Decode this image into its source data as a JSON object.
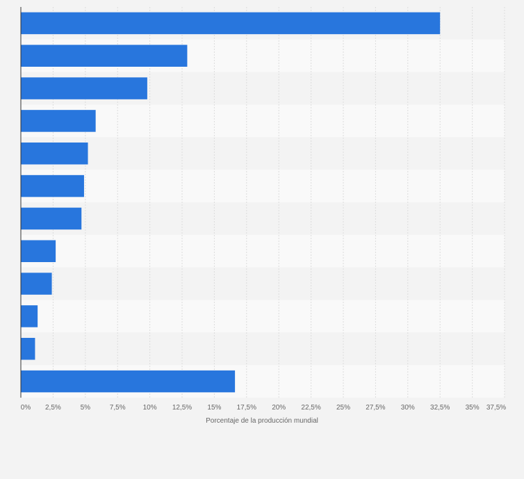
{
  "chart_data": {
    "type": "bar",
    "orientation": "horizontal",
    "title": "",
    "categories": [
      "",
      "",
      "",
      "",
      "",
      "",
      "",
      "",
      "",
      "",
      "",
      ""
    ],
    "values": [
      32.5,
      12.9,
      9.8,
      5.8,
      5.2,
      4.9,
      4.7,
      2.7,
      2.4,
      1.3,
      1.1,
      16.6
    ],
    "xlabel": "Porcentaje de la producción mundial",
    "ylabel": "",
    "xlim": [
      0,
      37.5
    ],
    "tick_labels": [
      "0%",
      "2,5%",
      "5%",
      "7,5%",
      "10%",
      "12,5%",
      "15%",
      "17,5%",
      "20%",
      "22,5%",
      "25%",
      "27,5%",
      "30%",
      "32,5%",
      "35%",
      "37,5%"
    ],
    "grid": true,
    "colors": {
      "bar": "#2876dd",
      "background": "#f3f3f3",
      "band_light": "#f9f9f9",
      "band_dark": "#f3f3f3",
      "grid": "#dcdcdc",
      "axis": "#333333"
    }
  }
}
